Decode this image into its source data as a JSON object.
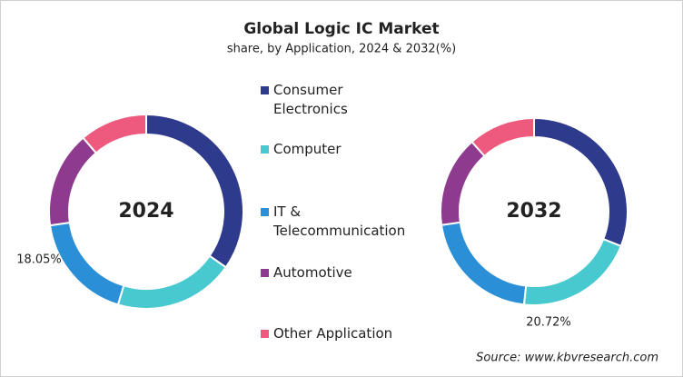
{
  "header": {
    "title": "Global Logic IC Market",
    "subtitle": "share, by Application, 2024 & 2032(%)",
    "source": "Source: www.kbvresearch.com"
  },
  "chart_data": [
    {
      "type": "pie",
      "title": "2024",
      "categories": [
        "Consumer Electronics",
        "Computer",
        "IT & Telecommunication",
        "Automotive",
        "Other Application"
      ],
      "values": [
        34.7,
        20.0,
        18.05,
        16.0,
        11.25
      ],
      "value_labels": [
        null,
        null,
        "18.05%",
        null,
        null
      ],
      "colors": [
        "#2e3a8c",
        "#48c9d0",
        "#2a8fd6",
        "#8e3b8f",
        "#ee5a7e"
      ]
    },
    {
      "type": "pie",
      "title": "2032",
      "categories": [
        "Consumer Electronics",
        "Computer",
        "IT & Telecommunication",
        "Automotive",
        "Other Application"
      ],
      "values": [
        31.0,
        20.72,
        21.0,
        15.7,
        11.58
      ],
      "value_labels": [
        null,
        "20.72%",
        null,
        null,
        null
      ],
      "colors": [
        "#2e3a8c",
        "#48c9d0",
        "#2a8fd6",
        "#8e3b8f",
        "#ee5a7e"
      ]
    }
  ]
}
